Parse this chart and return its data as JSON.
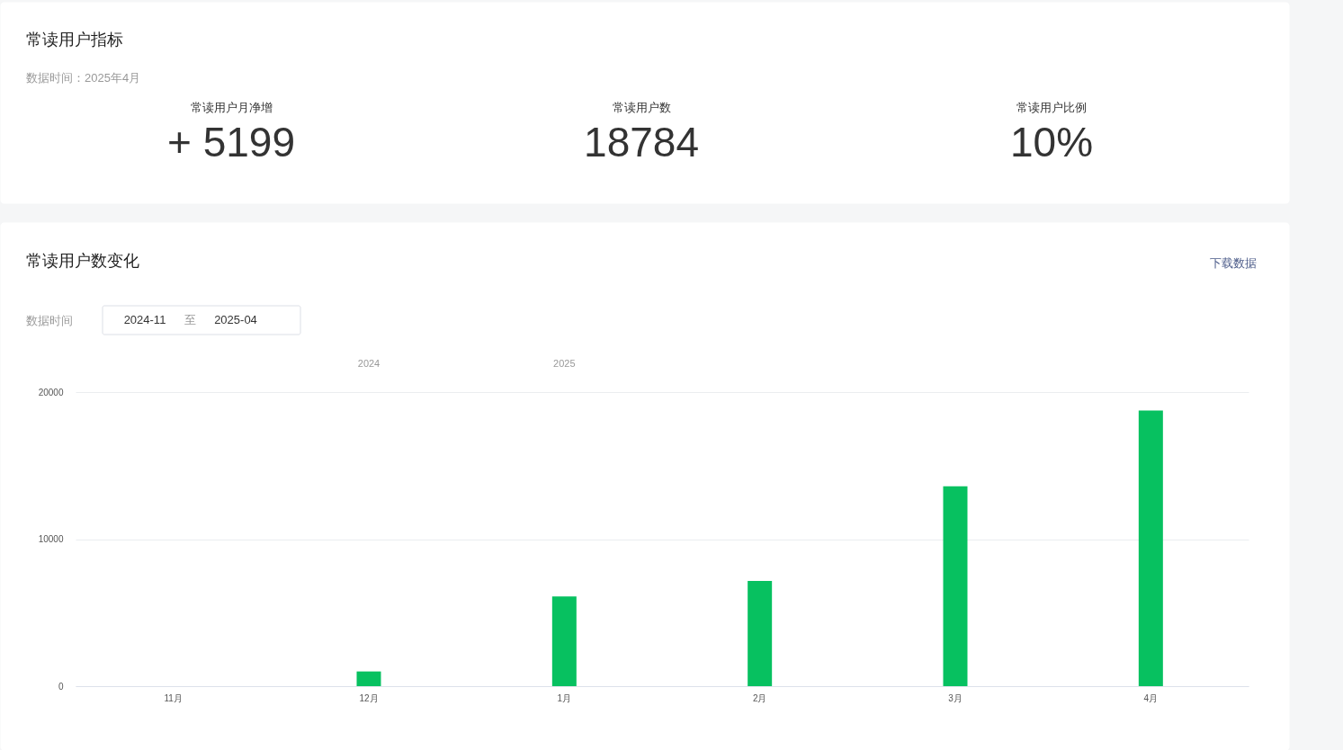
{
  "chart_data": [
    {
      "type": "other",
      "title": "常读用户指标",
      "subtitle": "数据时间：2025年4月",
      "annotations": [
        "常读用户月净增",
        "+ 5199",
        "常读用户数",
        "18784",
        "常读用户比例",
        "10%"
      ]
    },
    {
      "type": "bar",
      "title": "常读用户数变化",
      "annotations": [
        "下载数据",
        "数据时间",
        "2024-11",
        "至",
        "2025-04",
        "2024",
        "2025"
      ],
      "categories": [
        "11月",
        "12月",
        "1月",
        "2月",
        "3月",
        "4月"
      ],
      "values": [
        0,
        1000,
        6100,
        7150,
        13600,
        18750
      ],
      "color": "#07c160",
      "ylim": [
        0,
        20000
      ],
      "yticks": [
        0,
        10000,
        20000
      ],
      "grid": "y"
    }
  ]
}
